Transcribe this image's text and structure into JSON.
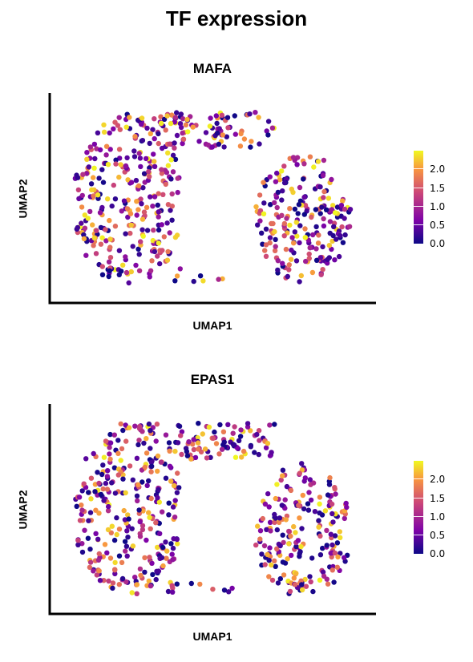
{
  "title": "TF expression",
  "chart_data": [
    {
      "type": "scatter",
      "title": "MAFA",
      "xlabel": "UMAP1",
      "ylabel": "UMAP2",
      "legend_position": "right",
      "grid": false,
      "color_scale": "plasma",
      "color_range": [
        0,
        2.2
      ],
      "colorbar_ticks": [
        "0.0",
        "0.5",
        "1.0",
        "1.5",
        "2.0"
      ],
      "seed": 11
    },
    {
      "type": "scatter",
      "title": "EPAS1",
      "xlabel": "UMAP1",
      "ylabel": "UMAP2",
      "legend_position": "right",
      "grid": false,
      "color_scale": "plasma",
      "color_range": [
        0,
        2.2
      ],
      "colorbar_ticks": [
        "0.0",
        "0.5",
        "1.0",
        "1.5",
        "2.0"
      ],
      "seed": 29
    }
  ]
}
